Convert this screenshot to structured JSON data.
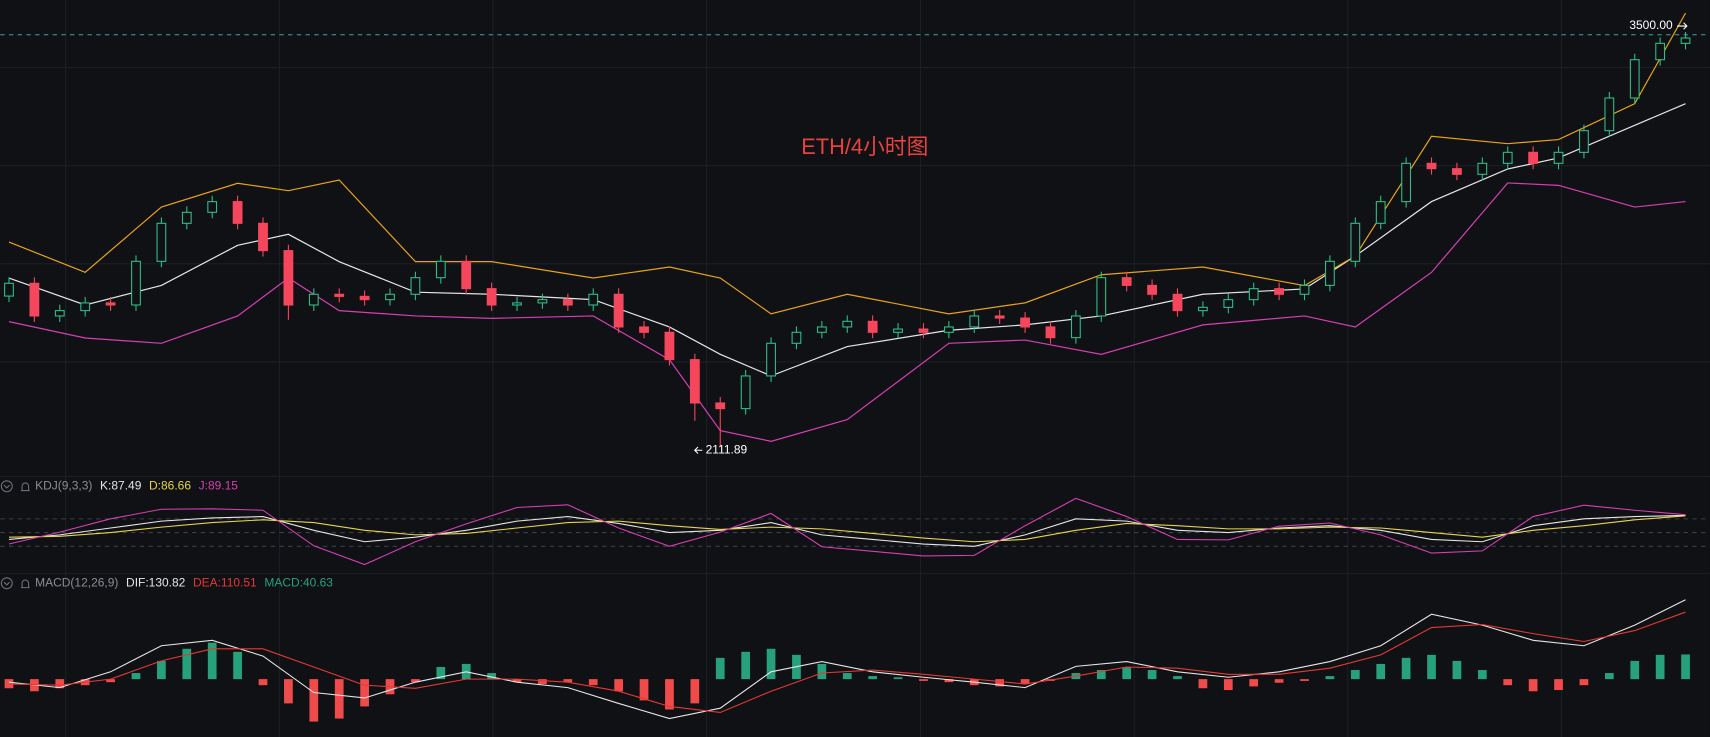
{
  "chart_data": [
    {
      "type": "candlestick",
      "title": "ETH/4小时图",
      "title_color": "#e8413e",
      "ylim": [
        2020,
        3617
      ],
      "colors": {
        "up": "#2ebd85",
        "down": "#f6465d"
      },
      "candles": [
        [
          2620,
          2683,
          2600,
          2663
        ],
        [
          2663,
          2683,
          2533,
          2553
        ],
        [
          2553,
          2591,
          2533,
          2571
        ],
        [
          2571,
          2617,
          2551,
          2597
        ],
        [
          2597,
          2617,
          2570,
          2590
        ],
        [
          2590,
          2757,
          2570,
          2737
        ],
        [
          2737,
          2885,
          2717,
          2865
        ],
        [
          2865,
          2922,
          2845,
          2902
        ],
        [
          2902,
          2958,
          2882,
          2938
        ],
        [
          2938,
          2958,
          2845,
          2865
        ],
        [
          2865,
          2885,
          2753,
          2773
        ],
        [
          2773,
          2793,
          2540,
          2590
        ],
        [
          2590,
          2646,
          2570,
          2626
        ],
        [
          2626,
          2646,
          2599,
          2619
        ],
        [
          2619,
          2639,
          2588,
          2608
        ],
        [
          2608,
          2646,
          2588,
          2626
        ],
        [
          2626,
          2702,
          2606,
          2682
        ],
        [
          2682,
          2757,
          2662,
          2737
        ],
        [
          2737,
          2757,
          2625,
          2645
        ],
        [
          2645,
          2665,
          2570,
          2590
        ],
        [
          2590,
          2617,
          2570,
          2597
        ],
        [
          2597,
          2628,
          2577,
          2608
        ],
        [
          2608,
          2628,
          2570,
          2590
        ],
        [
          2590,
          2646,
          2570,
          2626
        ],
        [
          2626,
          2646,
          2496,
          2516
        ],
        [
          2516,
          2536,
          2478,
          2498
        ],
        [
          2498,
          2518,
          2386,
          2406
        ],
        [
          2406,
          2426,
          2200,
          2260
        ],
        [
          2260,
          2280,
          2111.89,
          2241
        ],
        [
          2241,
          2371,
          2221,
          2351
        ],
        [
          2351,
          2481,
          2331,
          2461
        ],
        [
          2461,
          2518,
          2441,
          2498
        ],
        [
          2498,
          2536,
          2478,
          2516
        ],
        [
          2516,
          2555,
          2496,
          2535
        ],
        [
          2535,
          2555,
          2478,
          2498
        ],
        [
          2498,
          2529,
          2478,
          2509
        ],
        [
          2509,
          2529,
          2478,
          2498
        ],
        [
          2498,
          2536,
          2478,
          2516
        ],
        [
          2516,
          2573,
          2496,
          2553
        ],
        [
          2553,
          2573,
          2526,
          2546
        ],
        [
          2546,
          2566,
          2496,
          2516
        ],
        [
          2516,
          2536,
          2460,
          2480
        ],
        [
          2480,
          2573,
          2460,
          2553
        ],
        [
          2553,
          2702,
          2533,
          2682
        ],
        [
          2682,
          2702,
          2636,
          2656
        ],
        [
          2656,
          2676,
          2606,
          2626
        ],
        [
          2626,
          2646,
          2551,
          2571
        ],
        [
          2571,
          2602,
          2551,
          2582
        ],
        [
          2582,
          2628,
          2562,
          2608
        ],
        [
          2608,
          2665,
          2588,
          2645
        ],
        [
          2645,
          2665,
          2606,
          2626
        ],
        [
          2626,
          2676,
          2606,
          2656
        ],
        [
          2656,
          2757,
          2636,
          2737
        ],
        [
          2737,
          2885,
          2717,
          2865
        ],
        [
          2865,
          2958,
          2845,
          2938
        ],
        [
          2938,
          3087,
          2918,
          3067
        ],
        [
          3067,
          3087,
          3029,
          3049
        ],
        [
          3049,
          3069,
          3010,
          3030
        ],
        [
          3030,
          3087,
          3010,
          3067
        ],
        [
          3067,
          3124,
          3047,
          3104
        ],
        [
          3104,
          3124,
          3047,
          3067
        ],
        [
          3067,
          3124,
          3047,
          3104
        ],
        [
          3104,
          3197,
          3084,
          3177
        ],
        [
          3177,
          3307,
          3157,
          3287
        ],
        [
          3287,
          3436,
          3267,
          3416
        ],
        [
          3416,
          3491,
          3396,
          3471
        ],
        [
          3471,
          3509,
          3451,
          3489
        ]
      ],
      "band_x": [
        0,
        3,
        6,
        9,
        11,
        13,
        16,
        19,
        23,
        26,
        28,
        30,
        33,
        37,
        40,
        43,
        47,
        51,
        53,
        56,
        59,
        61,
        64,
        66
      ],
      "bands": [
        {
          "color": "#e6e6e6",
          "values": [
            2681,
            2590,
            2656,
            2791,
            2828,
            2736,
            2633,
            2626,
            2608,
            2516,
            2424,
            2351,
            2450,
            2505,
            2523,
            2553,
            2626,
            2644,
            2755,
            2938,
            3048,
            3085,
            3195,
            3268
          ]
        },
        {
          "color": "#e8a317",
          "values": [
            2802,
            2700,
            2920,
            3000,
            2975,
            3011,
            2736,
            2736,
            2681,
            2718,
            2681,
            2560,
            2626,
            2560,
            2597,
            2692,
            2718,
            2655,
            2755,
            3158,
            3133,
            3147,
            3268,
            3573
          ]
        },
        {
          "color": "#d63fb4",
          "values": [
            2534,
            2479,
            2461,
            2553,
            2681,
            2571,
            2553,
            2545,
            2553,
            2406,
            2167,
            2131,
            2204,
            2461,
            2472,
            2424,
            2523,
            2553,
            2516,
            2700,
            3001,
            2993,
            2920,
            2938
          ]
        }
      ],
      "price_line": {
        "value": 3500,
        "label": "3500.00"
      },
      "low_marker": 2111.89
    },
    {
      "type": "line",
      "header": "KDJ(9,3,3)",
      "ylim": [
        -30,
        130
      ],
      "levels": [
        20,
        50,
        80
      ],
      "x": [
        0,
        2,
        4,
        6,
        8,
        10,
        12,
        14,
        16,
        18,
        20,
        22,
        24,
        26,
        28,
        30,
        32,
        34,
        36,
        38,
        40,
        42,
        44,
        46,
        48,
        50,
        52,
        54,
        56,
        58,
        60,
        62,
        64,
        66
      ],
      "series": [
        {
          "label": "K:87.49",
          "color": "#e6e6e6",
          "values": [
            35,
            45,
            60,
            75,
            82,
            85,
            55,
            30,
            40,
            55,
            75,
            85,
            70,
            50,
            55,
            72,
            45,
            35,
            25,
            20,
            45,
            80,
            75,
            55,
            50,
            60,
            65,
            55,
            35,
            30,
            65,
            80,
            85,
            87.49
          ]
        },
        {
          "label": "D:86.66",
          "color": "#e8d44d",
          "values": [
            40,
            42,
            50,
            62,
            72,
            78,
            72,
            55,
            45,
            48,
            60,
            72,
            75,
            65,
            57,
            62,
            58,
            48,
            38,
            30,
            35,
            55,
            70,
            65,
            58,
            58,
            62,
            60,
            50,
            40,
            55,
            65,
            78,
            86.66
          ]
        },
        {
          "label": "J:89.15",
          "color": "#d63fb4",
          "values": [
            25,
            51,
            80,
            101,
            102,
            99,
            21,
            -20,
            30,
            69,
            105,
            111,
            60,
            20,
            51,
            92,
            19,
            9,
            -1,
            0,
            65,
            125,
            85,
            35,
            34,
            64,
            71,
            45,
            5,
            10,
            85,
            110,
            99,
            89.15
          ]
        }
      ]
    },
    {
      "type": "macd",
      "header": "MACD(12,26,9)",
      "ylim": [
        -90,
        140
      ],
      "x": [
        0,
        2,
        4,
        6,
        8,
        10,
        12,
        14,
        16,
        18,
        20,
        22,
        24,
        26,
        28,
        30,
        32,
        34,
        36,
        38,
        40,
        42,
        44,
        46,
        48,
        50,
        52,
        54,
        56,
        58,
        60,
        62,
        64,
        66
      ],
      "series": [
        {
          "label": "DIF:130.82",
          "color": "#e6e6e6",
          "values": [
            -5,
            -14,
            12,
            55,
            64,
            38,
            -22,
            -31,
            -5,
            12,
            -5,
            -14,
            -40,
            -65,
            -48,
            12,
            29,
            12,
            3,
            -5,
            -14,
            21,
            29,
            12,
            3,
            12,
            29,
            55,
            107,
            89,
            64,
            55,
            89,
            130.82
          ]
        },
        {
          "label": "DEA:110.51",
          "color": "#e53935",
          "values": [
            -8,
            -10,
            0,
            30,
            50,
            50,
            20,
            -10,
            -15,
            0,
            0,
            -5,
            -20,
            -45,
            -55,
            -20,
            10,
            15,
            8,
            0,
            -8,
            5,
            20,
            18,
            8,
            8,
            18,
            40,
            85,
            90,
            75,
            62,
            80,
            110.51
          ]
        }
      ],
      "histogram": {
        "label": "MACD:40.63",
        "label_color": "#26a17b",
        "colors": {
          "up": "#26a17b",
          "down": "#f04b4b"
        },
        "values": [
          -15,
          -20,
          -15,
          -10,
          -5,
          10,
          30,
          50,
          60,
          45,
          -10,
          -40,
          -70,
          -65,
          -45,
          -25,
          -5,
          20,
          25,
          10,
          -5,
          -8,
          -5,
          -10,
          -20,
          -35,
          -50,
          -40,
          35,
          45,
          50,
          40,
          25,
          10,
          5,
          3,
          -3,
          -5,
          -10,
          -12,
          -8,
          -3,
          10,
          15,
          20,
          15,
          5,
          -15,
          -18,
          -12,
          -6,
          -3,
          5,
          15,
          25,
          35,
          40,
          30,
          15,
          -10,
          -20,
          -18,
          -10,
          10,
          30,
          40,
          40.63
        ]
      }
    }
  ]
}
